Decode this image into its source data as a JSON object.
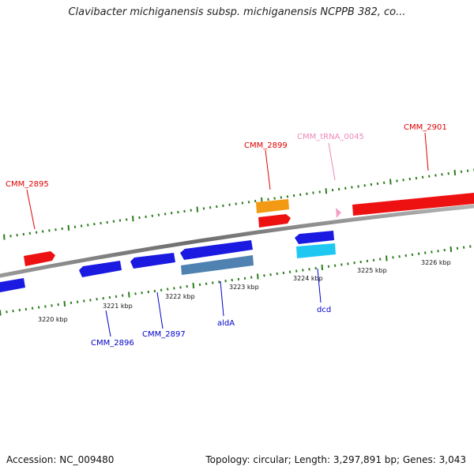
{
  "title": "Clavibacter michiganensis subsp. michiganensis NCPPB 382, co...",
  "footer": {
    "accession": "Accession: NC_009480",
    "summary": "Topology: circular; Length: 3,297,891 bp; Genes: 3,043"
  },
  "colors": {
    "backbone": "#888888",
    "tick": "#2e7d1f",
    "cds_red": "#ee1111",
    "cds_blue": "#1a1ae0",
    "orange": "#f39a14",
    "light_blue": "#1ec8f0",
    "steel_blue": "#4f82b0",
    "pink": "#f2a0c8",
    "label_red": "#dd0000",
    "label_blue": "#0000cc",
    "label_pink": "#ee88bb"
  },
  "scale": {
    "unit": "kbp",
    "labeled_ticks": [
      "3220 kbp",
      "3221 kbp",
      "3222 kbp",
      "3223 kbp",
      "3224 kbp",
      "3225 kbp",
      "3226 kbp"
    ]
  },
  "features": [
    {
      "id": "CMM_2895",
      "label": "CMM_2895",
      "strand": "+",
      "color": "cds_red"
    },
    {
      "id": "CMM_2896",
      "label": "CMM_2896",
      "strand": "-",
      "color": "cds_blue"
    },
    {
      "id": "CMM_2897",
      "label": "CMM_2897",
      "strand": "-",
      "color": "cds_blue"
    },
    {
      "id": "aldA",
      "label": "aldA",
      "strand": "-",
      "color": "cds_blue"
    },
    {
      "id": "CMM_2899",
      "label": "CMM_2899",
      "strand": "+",
      "color": "cds_red"
    },
    {
      "id": "dcd",
      "label": "dcd",
      "strand": "-",
      "color": "cds_blue"
    },
    {
      "id": "CMM_tRNA_0045",
      "label": "CMM_tRNA_0045",
      "strand": "+",
      "color": "pink"
    },
    {
      "id": "CMM_2901",
      "label": "CMM_2901",
      "strand": "+",
      "color": "cds_red"
    }
  ]
}
